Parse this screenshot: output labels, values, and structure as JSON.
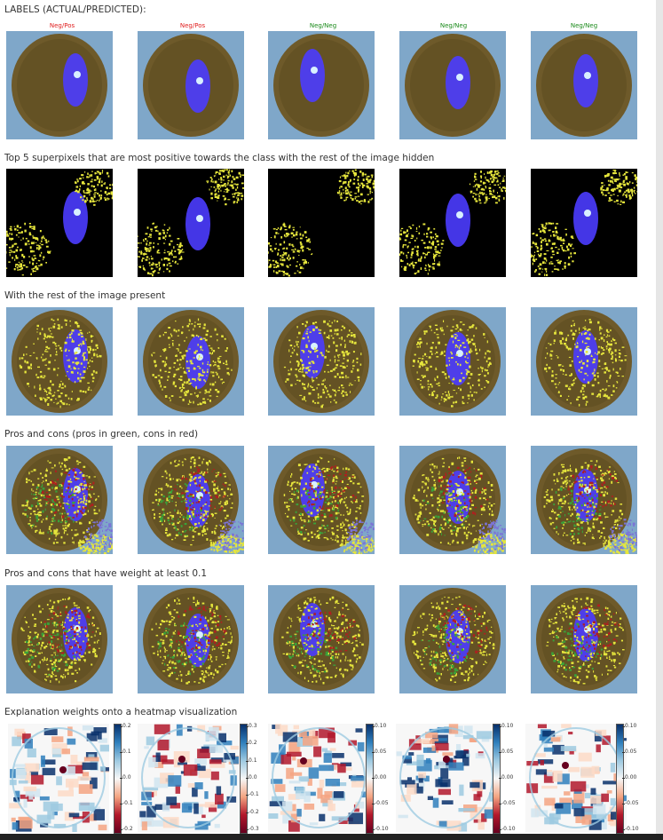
{
  "header": {
    "title": "LABELS (ACTUAL/PREDICTED):"
  },
  "labels": [
    {
      "text": "Neg/Pos",
      "color": "#e02020"
    },
    {
      "text": "Neg/Pos",
      "color": "#e02020"
    },
    {
      "text": "Neg/Neg",
      "color": "#1a8a1a"
    },
    {
      "text": "Neg/Neg",
      "color": "#1a8a1a"
    },
    {
      "text": "Neg/Neg",
      "color": "#1a8a1a"
    }
  ],
  "sections": {
    "top5": "Top 5 superpixels that are most positive towards the class with the rest of the image hidden",
    "rest_present": "With the rest of the image present",
    "pros_cons": "Pros and cons (pros in green, cons in red)",
    "pros_cons_weight": "Pros and cons that have weight at least 0.1",
    "heatmap": "Explanation weights onto a heatmap visualization"
  },
  "colorbars": [
    [
      "0.2",
      "0.1",
      "0.0",
      "-0.1",
      "-0.2"
    ],
    [
      "0.3",
      "0.2",
      "0.1",
      "0.0",
      "-0.1",
      "-0.2",
      "-0.3"
    ],
    [
      "0.10",
      "0.05",
      "0.00",
      "-0.05",
      "-0.10"
    ],
    [
      "0.10",
      "0.05",
      "0.00",
      "-0.05",
      "-0.10"
    ],
    [
      "0.10",
      "0.05",
      "0.00",
      "-0.05",
      "-0.10"
    ]
  ],
  "colors": {
    "background_blue": "#7fa7c9",
    "fundus_brown": "#6e5a2a",
    "superpixel_yellow": "#e6e63c",
    "disc_blue": "#4b3cff",
    "pro_green": "#3aa23a",
    "con_red": "#b01f1f"
  }
}
